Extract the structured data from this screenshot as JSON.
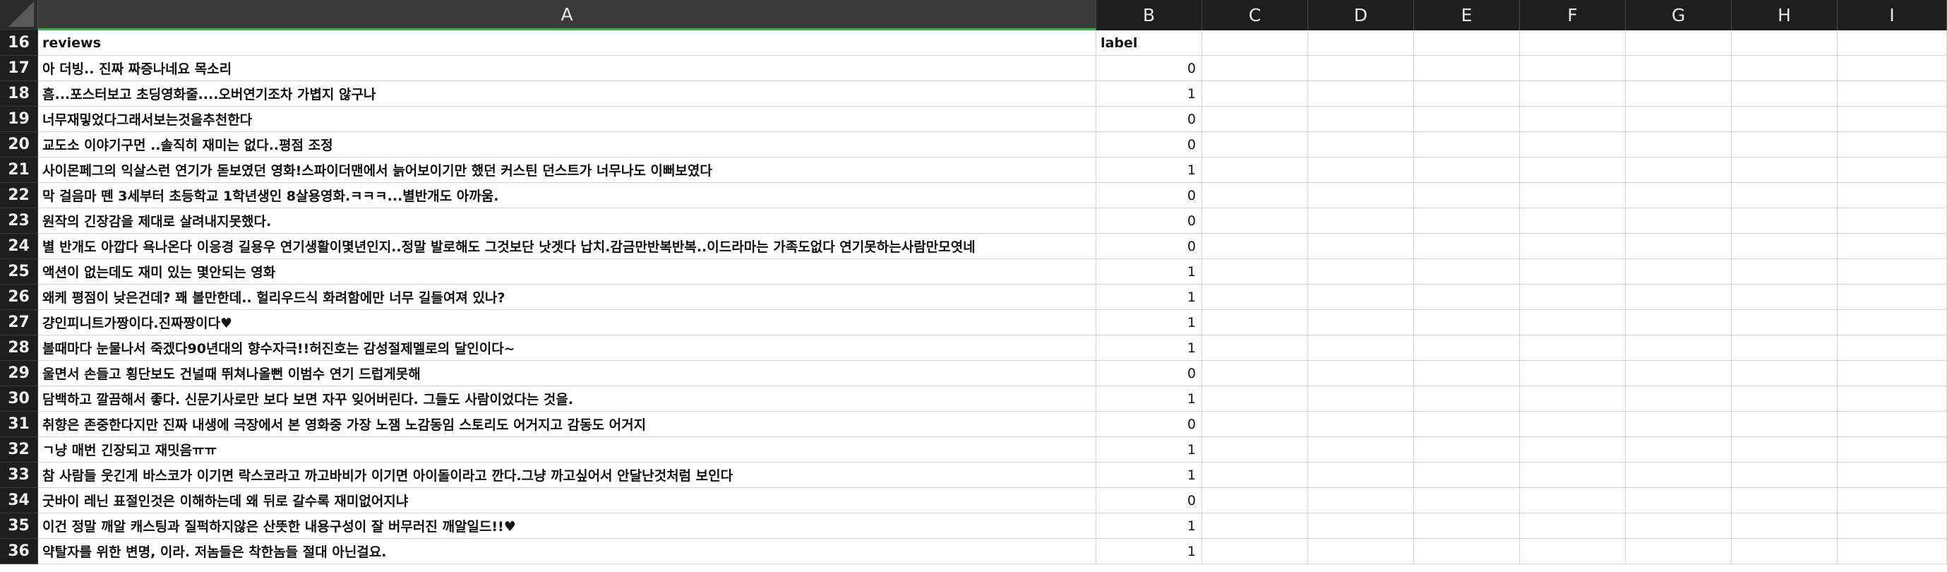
{
  "columns": [
    "A",
    "B",
    "C",
    "D",
    "E",
    "F",
    "G",
    "H",
    "I"
  ],
  "header_row": {
    "row_number": "16",
    "A": "reviews",
    "B": "label"
  },
  "rows": [
    {
      "n": "17",
      "review": "아 더빙.. 진짜 짜증나네요 목소리",
      "label": "0"
    },
    {
      "n": "18",
      "review": "흠...포스터보고 초딩영화줄....오버연기조차 가볍지 않구나",
      "label": "1"
    },
    {
      "n": "19",
      "review": "너무재밓었다그래서보는것을추천한다",
      "label": "0"
    },
    {
      "n": "20",
      "review": "교도소 이야기구먼 ..솔직히 재미는 없다..평점 조정",
      "label": "0"
    },
    {
      "n": "21",
      "review": "사이몬페그의 익살스런 연기가 돋보였던 영화!스파이더맨에서 늙어보이기만 했던 커스틴 던스트가 너무나도 이뻐보였다",
      "label": "1"
    },
    {
      "n": "22",
      "review": "막 걸음마 뗀 3세부터 초등학교 1학년생인 8살용영화.ㅋㅋㅋ...별반개도 아까움.",
      "label": "0"
    },
    {
      "n": "23",
      "review": "원작의 긴장감을 제대로 살려내지못했다.",
      "label": "0"
    },
    {
      "n": "24",
      "review": "별 반개도 아깝다 욕나온다 이응경 길용우 연기생활이몇년인지..정말 발로해도 그것보단 낫겟다 납치.감금만반복반복..이드라마는 가족도없다 연기못하는사람만모엿네",
      "label": "0"
    },
    {
      "n": "25",
      "review": "액션이 없는데도 재미 있는 몇안되는 영화",
      "label": "1"
    },
    {
      "n": "26",
      "review": "왜케 평점이 낮은건데? 꽤 볼만한데.. 헐리우드식 화려함에만 너무 길들여져 있나?",
      "label": "1"
    },
    {
      "n": "27",
      "review": "걍인피니트가짱이다.진짜짱이다♥",
      "label": "1"
    },
    {
      "n": "28",
      "review": "볼때마다 눈물나서 죽겠다90년대의 향수자극!!허진호는 감성절제멜로의 달인이다~",
      "label": "1"
    },
    {
      "n": "29",
      "review": "울면서 손들고 횡단보도 건널때 뛰쳐나올뻔 이범수 연기 드럽게못해",
      "label": "0"
    },
    {
      "n": "30",
      "review": "담백하고 깔끔해서 좋다. 신문기사로만 보다 보면 자꾸 잊어버린다. 그들도 사람이었다는 것을.",
      "label": "1"
    },
    {
      "n": "31",
      "review": "취향은 존중한다지만 진짜 내생에 극장에서 본 영화중 가장 노잼 노감동임 스토리도 어거지고 감동도 어거지",
      "label": "0"
    },
    {
      "n": "32",
      "review": "ㄱ냥 매번 긴장되고 재밋음ㅠㅠ",
      "label": "1"
    },
    {
      "n": "33",
      "review": "참 사람들 웃긴게 바스코가 이기면 락스코라고 까고바비가 이기면 아이돌이라고 깐다.그냥 까고싶어서 안달난것처럼 보인다",
      "label": "1"
    },
    {
      "n": "34",
      "review": "굿바이 레닌 표절인것은 이해하는데 왜 뒤로 갈수록 재미없어지냐",
      "label": "0"
    },
    {
      "n": "35",
      "review": "이건 정말 깨알 캐스팅과 질퍽하지않은 산뜻한 내용구성이 잘 버무러진 깨알일드!!♥",
      "label": "1"
    },
    {
      "n": "36",
      "review": "약탈자를 위한 변명, 이라. 저놈들은 착한놈들 절대 아닌걸요.",
      "label": "1"
    }
  ]
}
